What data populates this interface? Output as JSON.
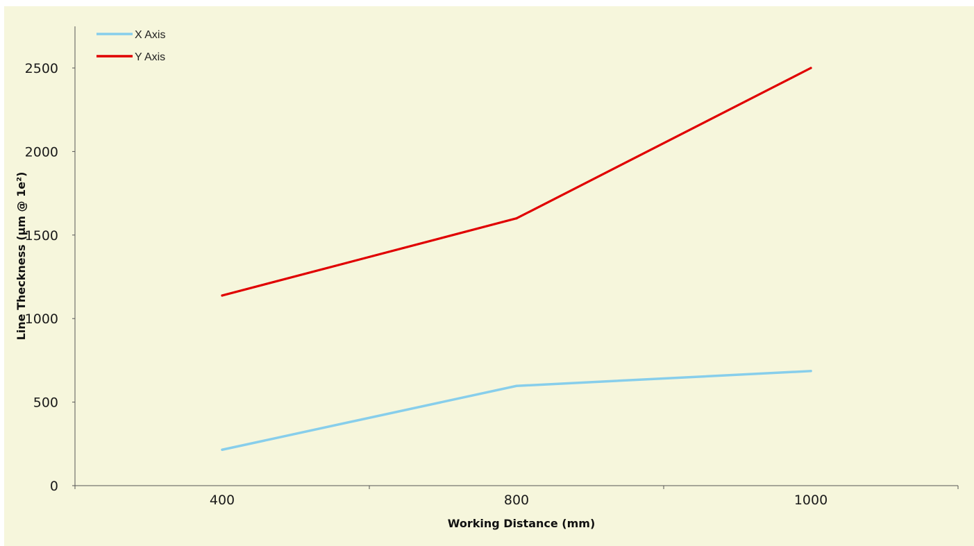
{
  "chart_data": {
    "type": "line",
    "categories": [
      "400",
      "800",
      "1000"
    ],
    "series": [
      {
        "name": "X Axis",
        "values": [
          215,
          597,
          686
        ],
        "color": "#87ceeb"
      },
      {
        "name": "Y Axis",
        "values": [
          1138,
          1600,
          2500
        ],
        "color": "#e00000"
      }
    ],
    "xlabel": "Working Distance (mm)",
    "ylabel": "Line Theckness (µm @ 1e²)",
    "ylim": [
      0,
      2500
    ],
    "yticks": [
      "0",
      "500",
      "1000",
      "1500",
      "2000",
      "2500"
    ],
    "grid": false,
    "legend_position": "top-left",
    "background_color": "#f6f6dc"
  }
}
